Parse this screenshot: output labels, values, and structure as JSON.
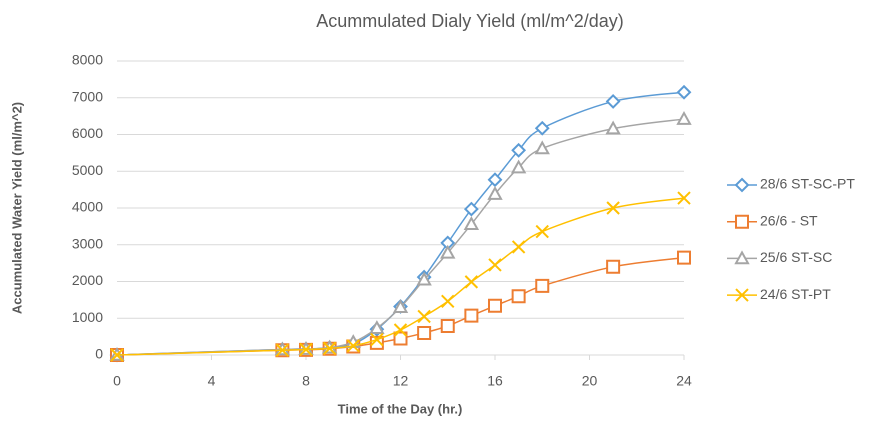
{
  "chart_data": {
    "type": "line",
    "title": "Acummulated Dialy Yield (ml/m^2/day)",
    "xlabel": "Time of the Day (hr.)",
    "ylabel": "Accumulated Water Yield (ml/m^2)",
    "x": [
      0,
      7,
      8,
      9,
      10,
      11,
      12,
      13,
      14,
      15,
      16,
      17,
      18,
      21,
      24
    ],
    "series": [
      {
        "name": "28/6  ST-SC-PT",
        "color": "#5b9bd5",
        "marker": "diamond",
        "values": [
          0,
          150,
          160,
          200,
          300,
          700,
          1320,
          2120,
          3050,
          3970,
          4770,
          5570,
          6170,
          6900,
          7150
        ]
      },
      {
        "name": "26/6  - ST",
        "color": "#ed7d31",
        "marker": "square",
        "values": [
          0,
          130,
          140,
          170,
          230,
          330,
          450,
          600,
          790,
          1070,
          1340,
          1600,
          1880,
          2400,
          2650
        ]
      },
      {
        "name": "25/6  ST-SC",
        "color": "#a5a5a5",
        "marker": "triangle",
        "values": [
          0,
          150,
          160,
          200,
          350,
          730,
          1300,
          2050,
          2780,
          3560,
          4380,
          5100,
          5620,
          6160,
          6420
        ]
      },
      {
        "name": "24/6  ST-PT",
        "color": "#ffc000",
        "marker": "x",
        "values": [
          0,
          130,
          150,
          180,
          250,
          420,
          680,
          1050,
          1460,
          1990,
          2450,
          2940,
          3360,
          4000,
          4270
        ]
      }
    ],
    "xlim": [
      0,
      24
    ],
    "xticks": [
      0,
      4,
      8,
      12,
      16,
      20,
      24
    ],
    "ylim": [
      0,
      8000
    ],
    "yticks": [
      0,
      1000,
      2000,
      3000,
      4000,
      5000,
      6000,
      7000,
      8000
    ],
    "grid": true,
    "legend": "right"
  }
}
